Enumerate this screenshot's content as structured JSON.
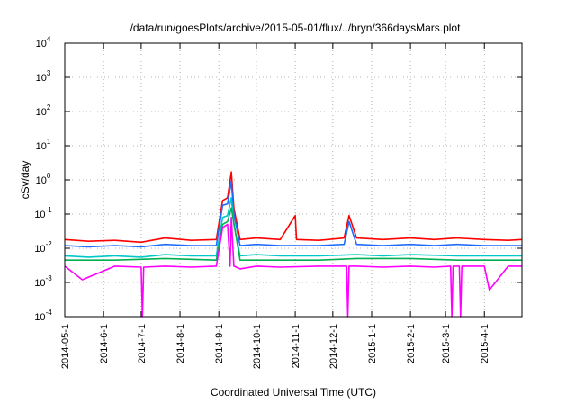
{
  "chart_data": {
    "type": "line",
    "title": "/data/run/goesPlots/archive/2015-05-01/flux/../bryn/366daysMars.plot",
    "xlabel": "Coordinated Universal Time (UTC)",
    "ylabel": "cSv/day",
    "yscale": "log",
    "ylim": [
      0.0001,
      10000
    ],
    "xlim": [
      "2014-05-01",
      "2015-05-01"
    ],
    "grid": true,
    "y_ticks": [
      {
        "base": "10",
        "exp": "-4"
      },
      {
        "base": "10",
        "exp": "-3"
      },
      {
        "base": "10",
        "exp": "-2"
      },
      {
        "base": "10",
        "exp": "-1"
      },
      {
        "base": "10",
        "exp": "0"
      },
      {
        "base": "10",
        "exp": "1"
      },
      {
        "base": "10",
        "exp": "2"
      },
      {
        "base": "10",
        "exp": "3"
      },
      {
        "base": "10",
        "exp": "4"
      }
    ],
    "x_ticks": [
      "2014-05-1",
      "2014-6-1",
      "2014-7-1",
      "2014-8-1",
      "2014-9-1",
      "2014-10-1",
      "2014-11-1",
      "2014-12-1",
      "2015-1-1",
      "2015-2-1",
      "2015-3-1",
      "2015-4-1"
    ],
    "x_tick_dates": [
      "2014-05-01",
      "2014-06-01",
      "2014-07-01",
      "2014-08-01",
      "2014-09-01",
      "2014-10-01",
      "2014-11-01",
      "2014-12-01",
      "2015-01-01",
      "2015-02-01",
      "2015-03-01",
      "2015-04-01"
    ],
    "series": [
      {
        "color": "#ff0000",
        "x": [
          "2014-05-01",
          "2014-05-20",
          "2014-06-10",
          "2014-07-01",
          "2014-07-20",
          "2014-08-10",
          "2014-08-30",
          "2014-09-04",
          "2014-09-08",
          "2014-09-11",
          "2014-09-13",
          "2014-09-18",
          "2014-10-01",
          "2014-10-20",
          "2014-11-01",
          "2014-11-02",
          "2014-11-20",
          "2014-12-10",
          "2014-12-14",
          "2014-12-20",
          "2015-01-10",
          "2015-02-01",
          "2015-02-20",
          "2015-03-10",
          "2015-04-01",
          "2015-04-20",
          "2015-05-01"
        ],
        "y": [
          0.018,
          0.016,
          0.017,
          0.015,
          0.02,
          0.017,
          0.018,
          0.25,
          0.3,
          1.7,
          0.15,
          0.018,
          0.02,
          0.018,
          0.09,
          0.018,
          0.017,
          0.02,
          0.09,
          0.02,
          0.018,
          0.02,
          0.018,
          0.02,
          0.018,
          0.017,
          0.018
        ]
      },
      {
        "color": "#1e6cff",
        "x": [
          "2014-05-01",
          "2014-05-20",
          "2014-06-10",
          "2014-07-01",
          "2014-07-20",
          "2014-08-10",
          "2014-08-30",
          "2014-09-04",
          "2014-09-08",
          "2014-09-11",
          "2014-09-13",
          "2014-09-18",
          "2014-10-01",
          "2014-10-20",
          "2014-11-01",
          "2014-11-20",
          "2014-12-10",
          "2014-12-14",
          "2014-12-20",
          "2015-01-10",
          "2015-02-01",
          "2015-02-20",
          "2015-03-10",
          "2015-04-01",
          "2015-04-20",
          "2015-05-01"
        ],
        "y": [
          0.012,
          0.011,
          0.012,
          0.011,
          0.013,
          0.012,
          0.012,
          0.18,
          0.2,
          0.9,
          0.1,
          0.012,
          0.013,
          0.012,
          0.012,
          0.012,
          0.013,
          0.06,
          0.013,
          0.012,
          0.013,
          0.012,
          0.013,
          0.012,
          0.012,
          0.012
        ]
      },
      {
        "color": "#00c8c8",
        "x": [
          "2014-05-01",
          "2014-05-20",
          "2014-06-10",
          "2014-07-01",
          "2014-07-20",
          "2014-08-10",
          "2014-08-30",
          "2014-09-04",
          "2014-09-08",
          "2014-09-11",
          "2014-09-13",
          "2014-09-18",
          "2014-10-01",
          "2014-10-20",
          "2014-11-20",
          "2014-12-20",
          "2015-01-10",
          "2015-02-01",
          "2015-03-10",
          "2015-04-01",
          "2015-05-01"
        ],
        "y": [
          0.006,
          0.0055,
          0.006,
          0.0055,
          0.0065,
          0.006,
          0.006,
          0.08,
          0.09,
          0.3,
          0.05,
          0.006,
          0.0065,
          0.006,
          0.006,
          0.0065,
          0.006,
          0.0065,
          0.006,
          0.006,
          0.006
        ]
      },
      {
        "color": "#00b050",
        "x": [
          "2014-05-01",
          "2014-06-10",
          "2014-07-20",
          "2014-08-30",
          "2014-09-04",
          "2014-09-08",
          "2014-09-11",
          "2014-09-18",
          "2014-10-20",
          "2014-11-20",
          "2014-12-20",
          "2015-02-01",
          "2015-03-10",
          "2015-04-20",
          "2015-05-01"
        ],
        "y": [
          0.0045,
          0.0045,
          0.005,
          0.0045,
          0.05,
          0.06,
          0.15,
          0.0045,
          0.0045,
          0.0045,
          0.005,
          0.005,
          0.0045,
          0.0045,
          0.0045
        ]
      },
      {
        "color": "#ff00ff",
        "x": [
          "2014-05-01",
          "2014-05-15",
          "2014-06-10",
          "2014-07-01",
          "2014-07-02",
          "2014-07-03",
          "2014-07-20",
          "2014-08-10",
          "2014-08-30",
          "2014-09-04",
          "2014-09-08",
          "2014-09-10",
          "2014-09-11",
          "2014-09-13",
          "2014-09-18",
          "2014-10-01",
          "2014-10-20",
          "2014-11-20",
          "2014-12-12",
          "2014-12-13",
          "2014-12-14",
          "2014-12-20",
          "2015-01-10",
          "2015-02-01",
          "2015-02-20",
          "2015-03-05",
          "2015-03-06",
          "2015-03-07",
          "2015-03-12",
          "2015-03-13",
          "2015-03-14",
          "2015-04-01",
          "2015-04-05",
          "2015-04-20",
          "2015-05-01"
        ],
        "y": [
          0.003,
          0.0012,
          0.003,
          0.0028,
          0.0001,
          0.0028,
          0.003,
          0.0028,
          0.003,
          0.04,
          0.05,
          0.003,
          0.08,
          0.003,
          0.0025,
          0.003,
          0.0028,
          0.003,
          0.003,
          0.0001,
          0.003,
          0.003,
          0.0028,
          0.003,
          0.0028,
          0.003,
          0.0001,
          0.003,
          0.003,
          0.0001,
          0.003,
          0.003,
          0.0006,
          0.003,
          0.003
        ]
      }
    ]
  }
}
